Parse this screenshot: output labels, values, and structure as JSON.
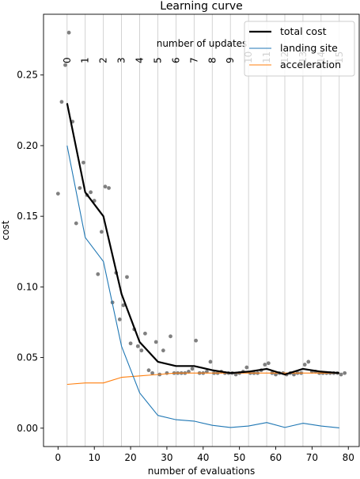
{
  "chart_data": {
    "type": "line",
    "title": "Learning curve",
    "xlabel": "number of evaluations",
    "ylabel": "cost",
    "xlim": [
      -4,
      83
    ],
    "ylim": [
      -0.013,
      0.293
    ],
    "x_ticks": [
      0,
      10,
      20,
      30,
      40,
      50,
      60,
      70,
      80
    ],
    "y_ticks": [
      0.0,
      0.05,
      0.1,
      0.15,
      0.2,
      0.25
    ],
    "y_tick_labels": [
      "0.00",
      "0.05",
      "0.10",
      "0.15",
      "0.20",
      "0.25"
    ],
    "secondary_axis_label": "number of updates",
    "update_x": [
      2.5,
      7.5,
      12.5,
      17.5,
      22.5,
      27.5,
      32.5,
      37.5,
      42.5,
      47.5,
      52.5,
      57.5,
      62.5,
      67.5,
      72.5,
      77.5
    ],
    "update_labels": [
      "0",
      "1",
      "2",
      "3",
      "4",
      "5",
      "6",
      "7",
      "8",
      "9",
      "10",
      "11",
      "12",
      "13",
      "14",
      "15"
    ],
    "grid": "vertical lines at each update",
    "legend_position": "top-right",
    "series": [
      {
        "name": "total cost",
        "color": "#000000",
        "x": [
          2.5,
          7.5,
          12.5,
          17.5,
          22.5,
          27.5,
          32.5,
          37.5,
          42.5,
          47.5,
          52.5,
          57.5,
          62.5,
          67.5,
          72.5,
          77.5
        ],
        "y": [
          0.23,
          0.167,
          0.15,
          0.095,
          0.061,
          0.047,
          0.044,
          0.044,
          0.041,
          0.039,
          0.04,
          0.042,
          0.038,
          0.042,
          0.04,
          0.039
        ]
      },
      {
        "name": "landing site",
        "color": "#1f77b4",
        "x": [
          2.5,
          7.5,
          12.5,
          17.5,
          22.5,
          27.5,
          32.5,
          37.5,
          42.5,
          47.5,
          52.5,
          57.5,
          62.5,
          67.5,
          72.5,
          77.5
        ],
        "y": [
          0.2,
          0.135,
          0.118,
          0.058,
          0.025,
          0.009,
          0.006,
          0.005,
          0.002,
          0.0005,
          0.0015,
          0.004,
          0.0005,
          0.0035,
          0.0015,
          0.0002
        ]
      },
      {
        "name": "acceleration",
        "color": "#ff7f0e",
        "x": [
          2.5,
          7.5,
          12.5,
          17.5,
          22.5,
          27.5,
          32.5,
          37.5,
          42.5,
          47.5,
          52.5,
          57.5,
          62.5,
          67.5,
          72.5,
          77.5
        ],
        "y": [
          0.031,
          0.032,
          0.032,
          0.036,
          0.037,
          0.038,
          0.039,
          0.039,
          0.039,
          0.039,
          0.039,
          0.039,
          0.039,
          0.039,
          0.039,
          0.039
        ]
      }
    ],
    "scatter": {
      "color": "#808080",
      "x": [
        0,
        1,
        2,
        3,
        4,
        5,
        6,
        7,
        8,
        9,
        10,
        11,
        12,
        13,
        14,
        15,
        16,
        17,
        18,
        19,
        20,
        21,
        22,
        23,
        24,
        25,
        26,
        27,
        28,
        29,
        30,
        31,
        32,
        33,
        34,
        35,
        36,
        37,
        38,
        39,
        40,
        41,
        42,
        43,
        44,
        45,
        46,
        47,
        48,
        49,
        50,
        51,
        52,
        53,
        54,
        55,
        56,
        57,
        58,
        59,
        60,
        61,
        62,
        63,
        64,
        65,
        66,
        67,
        68,
        69,
        70,
        71,
        72,
        73,
        74,
        75,
        76,
        77,
        78,
        79
      ],
      "y": [
        0.166,
        0.231,
        0.257,
        0.28,
        0.217,
        0.145,
        0.17,
        0.188,
        0.165,
        0.167,
        0.161,
        0.109,
        0.139,
        0.171,
        0.17,
        0.089,
        0.11,
        0.077,
        0.087,
        0.107,
        0.06,
        0.07,
        0.058,
        0.055,
        0.067,
        0.041,
        0.039,
        0.061,
        0.038,
        0.055,
        0.039,
        0.065,
        0.039,
        0.039,
        0.039,
        0.039,
        0.04,
        0.042,
        0.062,
        0.039,
        0.039,
        0.04,
        0.047,
        0.039,
        0.039,
        0.04,
        0.039,
        0.039,
        0.039,
        0.038,
        0.039,
        0.04,
        0.043,
        0.039,
        0.039,
        0.039,
        0.041,
        0.045,
        0.046,
        0.039,
        0.038,
        0.039,
        0.039,
        0.038,
        0.039,
        0.038,
        0.039,
        0.039,
        0.045,
        0.047,
        0.04,
        0.04,
        0.039,
        0.039,
        0.039,
        0.039,
        0.039,
        0.039,
        0.038,
        0.039
      ]
    }
  }
}
